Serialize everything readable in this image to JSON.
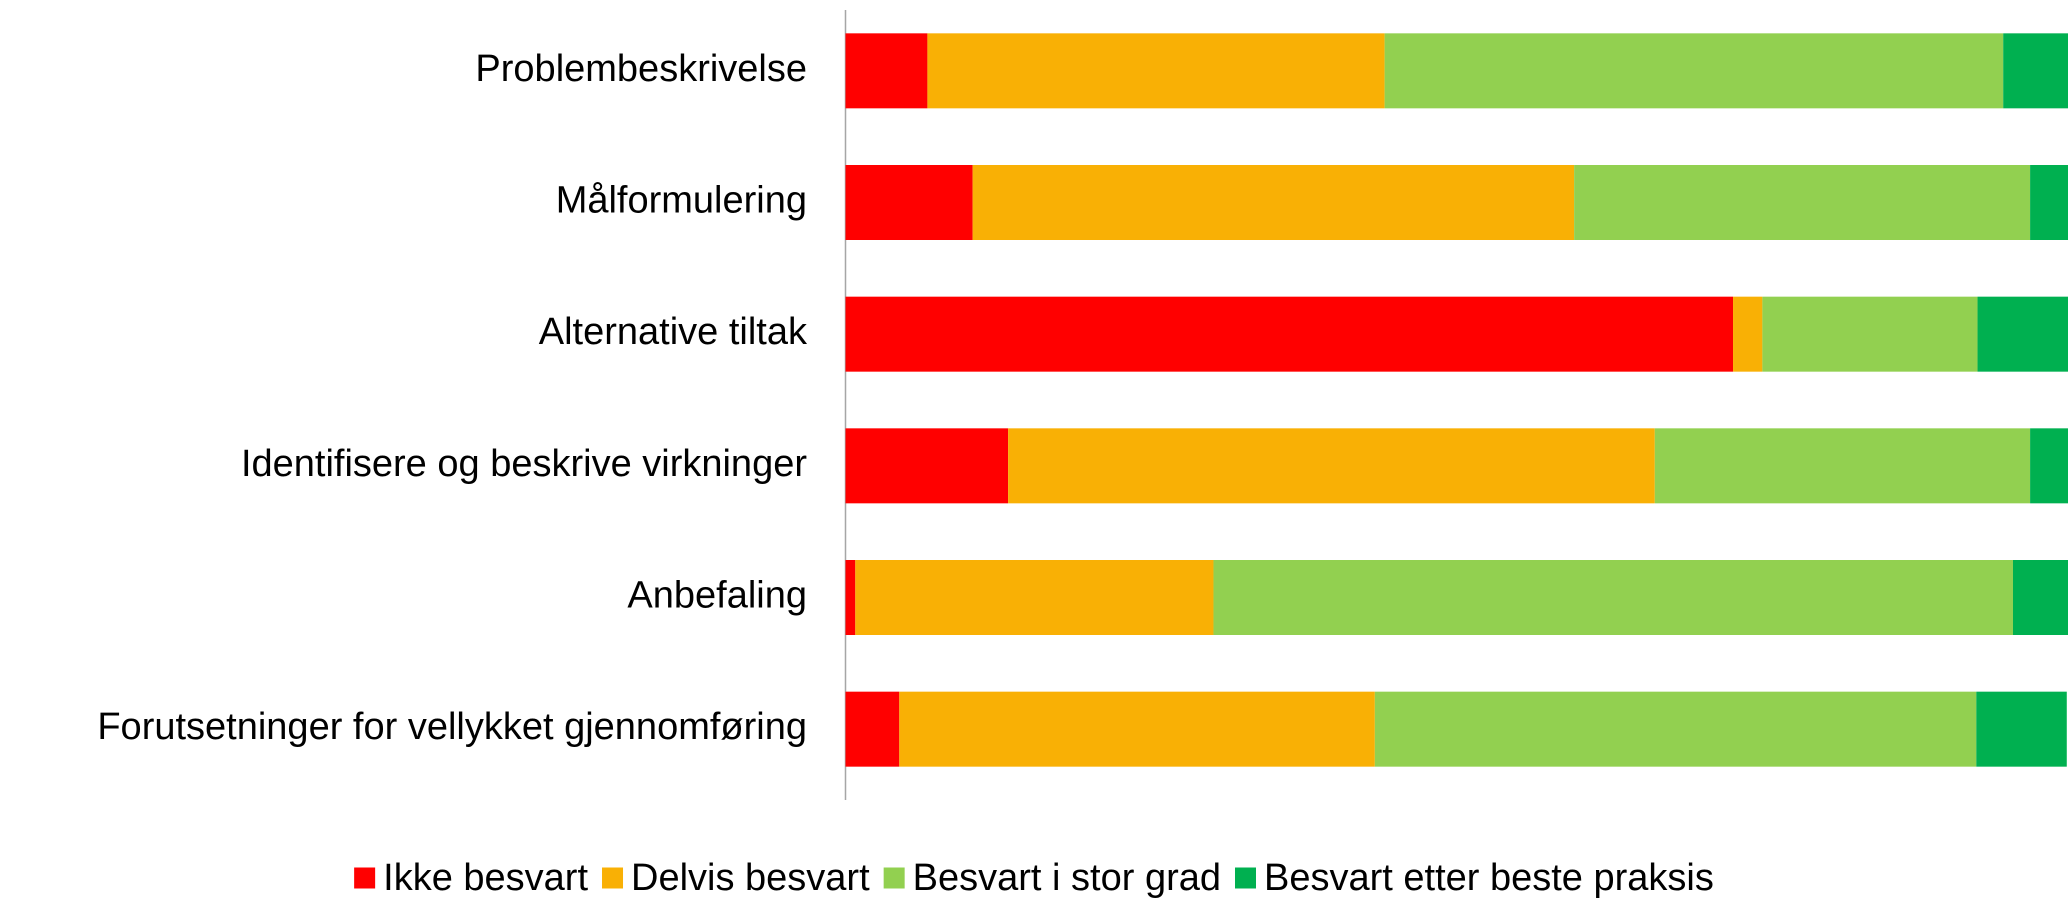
{
  "chart_data": {
    "type": "stacked-bar-horizontal",
    "categories": [
      "Problembeskrivelse",
      "Målformulering",
      "Alternative tiltak",
      "Identifisere og beskrive virkninger",
      "Anbefaling",
      "Forutsetninger for vellykket gjennomføring"
    ],
    "series": [
      {
        "name": "Ikke besvart",
        "color": "#ff0000",
        "values": [
          6.7,
          10.4,
          72.6,
          13.3,
          0.8,
          4.4
        ]
      },
      {
        "name": "Delvis besvart",
        "color": "#f9b005",
        "values": [
          37.4,
          49.2,
          2.4,
          52.9,
          29.3,
          38.9
        ]
      },
      {
        "name": "Besvart i stor grad",
        "color": "#92d050",
        "values": [
          50.6,
          37.3,
          17.6,
          30.7,
          65.4,
          49.2
        ]
      },
      {
        "name": "Besvart etter beste praksis",
        "color": "#00b050",
        "values": [
          5.3,
          3.1,
          7.4,
          3.1,
          4.5,
          7.4
        ]
      }
    ],
    "xlim": [
      0,
      100
    ],
    "legend": "bottom"
  }
}
